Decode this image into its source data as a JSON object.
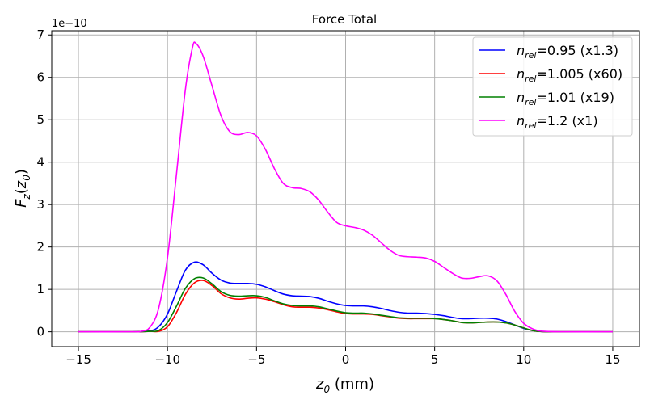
{
  "chart_data": {
    "type": "line",
    "title": "Force Total",
    "xlabel": "z₀ (mm)",
    "ylabel": "F_z(z₀)",
    "y_offset_label": "1e−10",
    "xlim": [
      -16.5,
      16.5
    ],
    "ylim": [
      -0.35,
      7.1
    ],
    "x_ticks": [
      -15,
      -10,
      -5,
      0,
      5,
      10,
      15
    ],
    "x_tick_labels": [
      "−15",
      "−10",
      "−5",
      "0",
      "5",
      "10",
      "15"
    ],
    "y_ticks": [
      0,
      1,
      2,
      3,
      4,
      5,
      6,
      7
    ],
    "y_tick_labels": [
      "0",
      "1",
      "2",
      "3",
      "4",
      "5",
      "6",
      "7"
    ],
    "grid": true,
    "legend_position": "top-right",
    "series": [
      {
        "name": "n_rel=0.95 (x1.3)",
        "legend": {
          "label": "n",
          "sub": "rel",
          "rest": "=0.95 (x1.3)"
        },
        "color": "#0000ff",
        "points": [
          [
            -15,
            0
          ],
          [
            -12,
            0
          ],
          [
            -11,
            0.02
          ],
          [
            -10.5,
            0.12
          ],
          [
            -10,
            0.42
          ],
          [
            -9.5,
            0.95
          ],
          [
            -9,
            1.45
          ],
          [
            -8.5,
            1.64
          ],
          [
            -8,
            1.58
          ],
          [
            -7.5,
            1.38
          ],
          [
            -7,
            1.22
          ],
          [
            -6.5,
            1.15
          ],
          [
            -6,
            1.14
          ],
          [
            -5.5,
            1.14
          ],
          [
            -5,
            1.12
          ],
          [
            -4.5,
            1.06
          ],
          [
            -4,
            0.97
          ],
          [
            -3.5,
            0.89
          ],
          [
            -3,
            0.85
          ],
          [
            -2.5,
            0.84
          ],
          [
            -2,
            0.83
          ],
          [
            -1.5,
            0.79
          ],
          [
            -1,
            0.72
          ],
          [
            -0.5,
            0.66
          ],
          [
            0,
            0.62
          ],
          [
            0.5,
            0.61
          ],
          [
            1,
            0.61
          ],
          [
            1.5,
            0.59
          ],
          [
            2,
            0.55
          ],
          [
            2.5,
            0.5
          ],
          [
            3,
            0.46
          ],
          [
            3.5,
            0.44
          ],
          [
            4,
            0.44
          ],
          [
            4.5,
            0.43
          ],
          [
            5,
            0.41
          ],
          [
            5.5,
            0.38
          ],
          [
            6,
            0.34
          ],
          [
            6.5,
            0.31
          ],
          [
            7,
            0.31
          ],
          [
            7.5,
            0.32
          ],
          [
            8,
            0.32
          ],
          [
            8.5,
            0.3
          ],
          [
            9,
            0.24
          ],
          [
            9.5,
            0.16
          ],
          [
            10,
            0.08
          ],
          [
            10.5,
            0.03
          ],
          [
            11,
            0.005
          ],
          [
            12,
            0
          ],
          [
            15,
            0
          ]
        ]
      },
      {
        "name": "n_rel=1.005 (x60)",
        "legend": {
          "label": "n",
          "sub": "rel",
          "rest": "=1.005 (x60)"
        },
        "color": "#ff0000",
        "points": [
          [
            -15,
            0
          ],
          [
            -12,
            0
          ],
          [
            -11,
            0.01
          ],
          [
            -10.5,
            0.01
          ],
          [
            -10,
            0.12
          ],
          [
            -9.5,
            0.45
          ],
          [
            -9,
            0.88
          ],
          [
            -8.5,
            1.15
          ],
          [
            -8,
            1.21
          ],
          [
            -7.5,
            1.09
          ],
          [
            -7,
            0.9
          ],
          [
            -6.5,
            0.8
          ],
          [
            -6,
            0.77
          ],
          [
            -5.5,
            0.79
          ],
          [
            -5,
            0.8
          ],
          [
            -4.5,
            0.77
          ],
          [
            -4,
            0.71
          ],
          [
            -3.5,
            0.64
          ],
          [
            -3,
            0.59
          ],
          [
            -2.5,
            0.58
          ],
          [
            -2,
            0.58
          ],
          [
            -1.5,
            0.56
          ],
          [
            -1,
            0.52
          ],
          [
            -0.5,
            0.47
          ],
          [
            0,
            0.43
          ],
          [
            0.5,
            0.42
          ],
          [
            1,
            0.42
          ],
          [
            1.5,
            0.41
          ],
          [
            2,
            0.38
          ],
          [
            2.5,
            0.35
          ],
          [
            3,
            0.32
          ],
          [
            3.5,
            0.31
          ],
          [
            4,
            0.31
          ],
          [
            4.5,
            0.31
          ],
          [
            5,
            0.31
          ],
          [
            5.5,
            0.29
          ],
          [
            6,
            0.26
          ],
          [
            6.5,
            0.22
          ],
          [
            7,
            0.21
          ],
          [
            7.5,
            0.22
          ],
          [
            8,
            0.23
          ],
          [
            8.5,
            0.23
          ],
          [
            9,
            0.21
          ],
          [
            9.5,
            0.16
          ],
          [
            10,
            0.09
          ],
          [
            10.5,
            0.03
          ],
          [
            11,
            0.005
          ],
          [
            12,
            0
          ],
          [
            15,
            0
          ]
        ]
      },
      {
        "name": "n_rel=1.01 (x19)",
        "legend": {
          "label": "n",
          "sub": "rel",
          "rest": "=1.01 (x19)"
        },
        "color": "#008000",
        "points": [
          [
            -15,
            0
          ],
          [
            -12,
            0
          ],
          [
            -11,
            0.01
          ],
          [
            -10.5,
            0.03
          ],
          [
            -10,
            0.22
          ],
          [
            -9.5,
            0.6
          ],
          [
            -9,
            1.02
          ],
          [
            -8.5,
            1.25
          ],
          [
            -8,
            1.27
          ],
          [
            -7.5,
            1.13
          ],
          [
            -7,
            0.95
          ],
          [
            -6.5,
            0.86
          ],
          [
            -6,
            0.84
          ],
          [
            -5.5,
            0.85
          ],
          [
            -5,
            0.85
          ],
          [
            -4.5,
            0.81
          ],
          [
            -4,
            0.73
          ],
          [
            -3.5,
            0.66
          ],
          [
            -3,
            0.62
          ],
          [
            -2.5,
            0.61
          ],
          [
            -2,
            0.61
          ],
          [
            -1.5,
            0.59
          ],
          [
            -1,
            0.54
          ],
          [
            -0.5,
            0.49
          ],
          [
            0,
            0.45
          ],
          [
            0.5,
            0.44
          ],
          [
            1,
            0.44
          ],
          [
            1.5,
            0.42
          ],
          [
            2,
            0.39
          ],
          [
            2.5,
            0.36
          ],
          [
            3,
            0.33
          ],
          [
            3.5,
            0.32
          ],
          [
            4,
            0.32
          ],
          [
            4.5,
            0.32
          ],
          [
            5,
            0.31
          ],
          [
            5.5,
            0.29
          ],
          [
            6,
            0.26
          ],
          [
            6.5,
            0.22
          ],
          [
            7,
            0.21
          ],
          [
            7.5,
            0.22
          ],
          [
            8,
            0.23
          ],
          [
            8.5,
            0.23
          ],
          [
            9,
            0.21
          ],
          [
            9.5,
            0.16
          ],
          [
            10,
            0.09
          ],
          [
            10.5,
            0.03
          ],
          [
            11,
            0.005
          ],
          [
            12,
            0
          ],
          [
            15,
            0
          ]
        ]
      },
      {
        "name": "n_rel=1.2 (x1)",
        "legend": {
          "label": "n",
          "sub": "rel",
          "rest": "=1.2 (x1)"
        },
        "color": "#ff00ff",
        "points": [
          [
            -15,
            0
          ],
          [
            -12,
            0
          ],
          [
            -11.5,
            0.01
          ],
          [
            -11,
            0.1
          ],
          [
            -10.5,
            0.55
          ],
          [
            -10,
            1.75
          ],
          [
            -9.5,
            3.7
          ],
          [
            -9,
            5.7
          ],
          [
            -8.6,
            6.7
          ],
          [
            -8.4,
            6.8
          ],
          [
            -8,
            6.5
          ],
          [
            -7.5,
            5.8
          ],
          [
            -7,
            5.1
          ],
          [
            -6.5,
            4.72
          ],
          [
            -6,
            4.65
          ],
          [
            -5.5,
            4.7
          ],
          [
            -5,
            4.62
          ],
          [
            -4.5,
            4.3
          ],
          [
            -4,
            3.85
          ],
          [
            -3.5,
            3.5
          ],
          [
            -3,
            3.4
          ],
          [
            -2.5,
            3.38
          ],
          [
            -2,
            3.3
          ],
          [
            -1.5,
            3.1
          ],
          [
            -1,
            2.82
          ],
          [
            -0.5,
            2.58
          ],
          [
            0,
            2.5
          ],
          [
            0.5,
            2.46
          ],
          [
            1,
            2.4
          ],
          [
            1.5,
            2.28
          ],
          [
            2,
            2.1
          ],
          [
            2.5,
            1.92
          ],
          [
            3,
            1.8
          ],
          [
            3.5,
            1.77
          ],
          [
            4,
            1.76
          ],
          [
            4.5,
            1.74
          ],
          [
            5,
            1.66
          ],
          [
            5.5,
            1.52
          ],
          [
            6,
            1.38
          ],
          [
            6.5,
            1.27
          ],
          [
            7,
            1.26
          ],
          [
            7.5,
            1.3
          ],
          [
            8,
            1.32
          ],
          [
            8.5,
            1.2
          ],
          [
            9,
            0.88
          ],
          [
            9.5,
            0.48
          ],
          [
            10,
            0.2
          ],
          [
            10.5,
            0.07
          ],
          [
            11,
            0.015
          ],
          [
            12,
            0
          ],
          [
            15,
            0
          ]
        ]
      }
    ]
  }
}
